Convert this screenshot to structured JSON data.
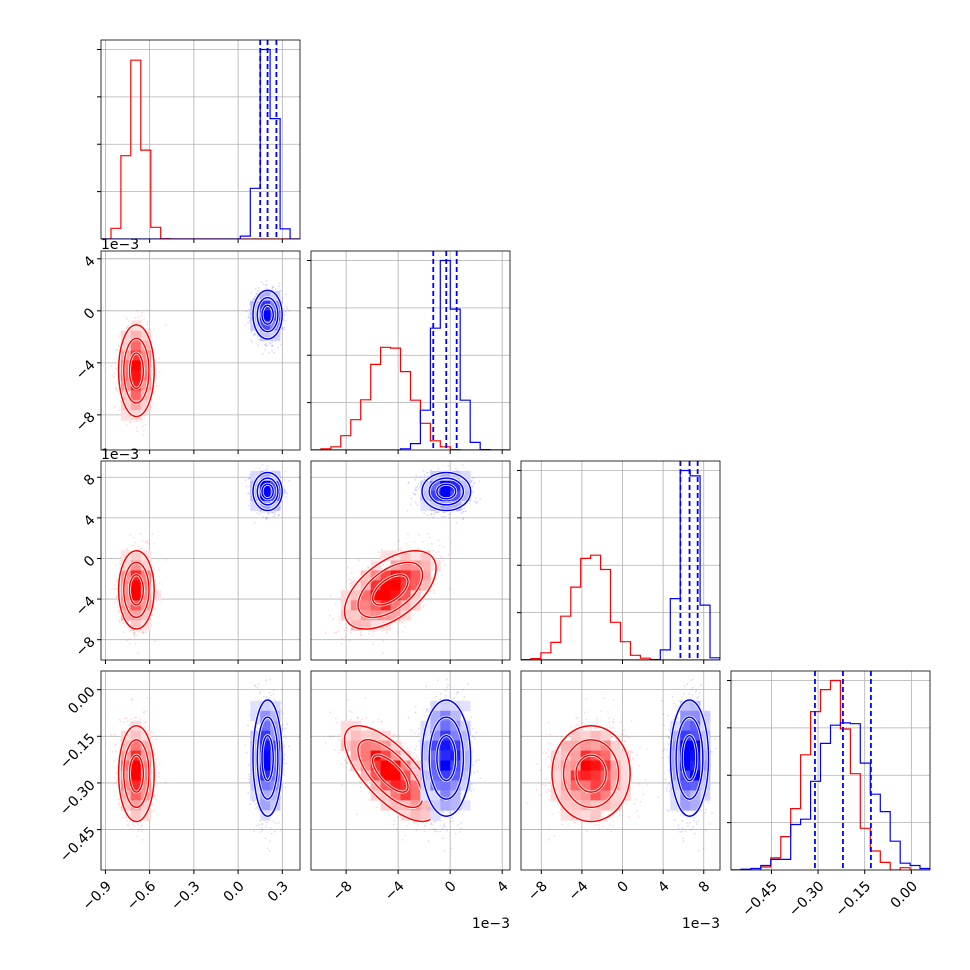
{
  "chart_data": {
    "type": "scatter",
    "subtype": "corner-plot",
    "parameters": 4,
    "series_colors": {
      "red": "#ff0000",
      "blue": "#0000ff"
    },
    "axes": [
      {
        "lim": [
          -0.93,
          0.42
        ],
        "ticks": [
          -0.9,
          -0.6,
          -0.3,
          0.0,
          0.3
        ],
        "tick_labels": [
          "−0.9",
          "−0.6",
          "−0.3",
          "0.0",
          "0.3"
        ],
        "exponent": ""
      },
      {
        "lim": [
          -10.7,
          4.6
        ],
        "ticks": [
          -8,
          -4,
          0,
          4
        ],
        "tick_labels": [
          "−8",
          "−4",
          "0",
          "4"
        ],
        "exponent": "1e−3"
      },
      {
        "lim": [
          -10.0,
          9.6
        ],
        "ticks": [
          -8,
          -4,
          0,
          4,
          8
        ],
        "tick_labels": [
          "−8",
          "−4",
          "0",
          "4",
          "8"
        ],
        "exponent": "1e−3"
      },
      {
        "lim": [
          -0.58,
          0.06
        ],
        "ticks": [
          -0.45,
          -0.3,
          -0.15,
          0.0
        ],
        "tick_labels": [
          "−0.45",
          "−0.30",
          "−0.15",
          "0.00"
        ],
        "exponent": ""
      }
    ],
    "red": {
      "mean": [
        -0.69,
        -4.6,
        -3.1,
        -0.27
      ],
      "sd": [
        0.055,
        1.6,
        1.75,
        0.07
      ],
      "corr": [
        [
          1,
          0.0,
          0.0,
          0.0
        ],
        [
          0.0,
          1,
          0.55,
          -0.7
        ],
        [
          0.0,
          0.55,
          1,
          0.0
        ],
        [
          0.0,
          -0.7,
          0.0,
          1
        ]
      ]
    },
    "blue": {
      "mean": [
        0.2,
        -0.3,
        6.6,
        -0.22
      ],
      "sd": [
        0.045,
        0.85,
        0.85,
        0.085
      ],
      "corr": [
        [
          1,
          0.0,
          0.0,
          0.0
        ],
        [
          0.0,
          1,
          0.0,
          0.0
        ],
        [
          0.0,
          0.0,
          1,
          0.0
        ],
        [
          0.0,
          0.0,
          0.0,
          1
        ]
      ]
    },
    "quantile_lines": [
      [
        0.15,
        0.2,
        0.26
      ],
      [
        -1.3,
        -0.3,
        0.5
      ],
      [
        5.7,
        6.6,
        7.4
      ],
      [
        -0.31,
        -0.22,
        -0.13
      ]
    ],
    "grid": true
  }
}
